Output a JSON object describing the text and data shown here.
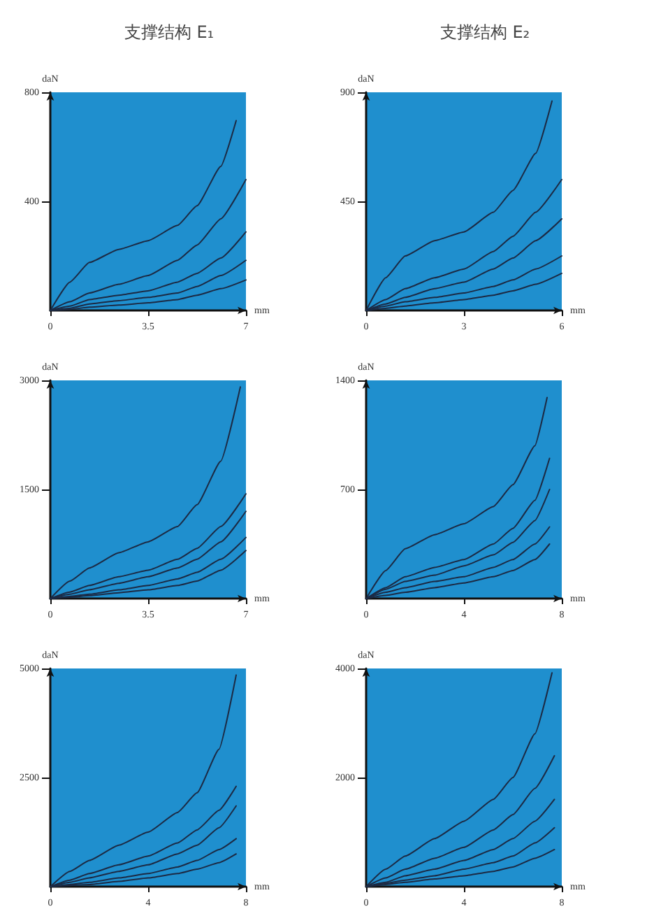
{
  "chart_data": [
    {
      "type": "line",
      "title": "支撑结构 E₁",
      "xlabel": "mm",
      "ylabel": "daN",
      "xlim": [
        0,
        7
      ],
      "xticks": [
        0,
        3.5,
        7
      ],
      "ylim": [
        0,
        800
      ],
      "yticks": [
        400,
        800
      ],
      "grid": false,
      "marker": "none",
      "line_style": "solid",
      "x": [
        0,
        0.7,
        1.4,
        2.45,
        3.5,
        4.55,
        5.25,
        6.1,
        7
      ],
      "series": [
        {
          "color": "#1c2a44",
          "x": [
            0,
            0.7,
            1.4,
            2.45,
            3.5,
            4.55,
            5.25,
            6.1,
            6.65
          ],
          "values": [
            0,
            104,
            176,
            224,
            256,
            312,
            384,
            528,
            696
          ]
        },
        {
          "color": "#1c2a44",
          "values": [
            0,
            32,
            64,
            96,
            128,
            184,
            240,
            336,
            480
          ]
        },
        {
          "color": "#1c2a44",
          "values": [
            0,
            16,
            40,
            56,
            72,
            104,
            136,
            192,
            288
          ]
        },
        {
          "color": "#1c2a44",
          "values": [
            0,
            8,
            24,
            36,
            48,
            64,
            88,
            128,
            184
          ]
        },
        {
          "color": "#1c2a44",
          "values": [
            0,
            4,
            12,
            20,
            28,
            40,
            56,
            80,
            112
          ]
        }
      ]
    },
    {
      "type": "line",
      "title": "支撑结构 E₂",
      "xlabel": "mm",
      "ylabel": "daN",
      "xlim": [
        0,
        6
      ],
      "xticks": [
        0,
        3,
        6
      ],
      "ylim": [
        0,
        900
      ],
      "yticks": [
        450,
        900
      ],
      "grid": false,
      "marker": "none",
      "line_style": "solid",
      "x": [
        0,
        0.6,
        1.2,
        2.1,
        3,
        3.9,
        4.5,
        5.2,
        6
      ],
      "series": [
        {
          "color": "#1c2a44",
          "x": [
            0,
            0.6,
            1.2,
            2.1,
            3,
            3.9,
            4.5,
            5.2,
            5.7
          ],
          "values": [
            0,
            135,
            225,
            288,
            324,
            405,
            495,
            648,
            864
          ]
        },
        {
          "color": "#1c2a44",
          "values": [
            0,
            45,
            90,
            135,
            171,
            243,
            306,
            405,
            540
          ]
        },
        {
          "color": "#1c2a44",
          "values": [
            0,
            27,
            54,
            90,
            117,
            171,
            216,
            288,
            378
          ]
        },
        {
          "color": "#1c2a44",
          "values": [
            0,
            18,
            36,
            54,
            72,
            99,
            126,
            171,
            225
          ]
        },
        {
          "color": "#1c2a44",
          "values": [
            0,
            9,
            18,
            32,
            45,
            63,
            81,
            108,
            153
          ]
        }
      ]
    },
    {
      "type": "line",
      "xlabel": "mm",
      "ylabel": "daN",
      "xlim": [
        0,
        7
      ],
      "xticks": [
        0,
        3.5,
        7
      ],
      "ylim": [
        0,
        3000
      ],
      "yticks": [
        1500,
        3000
      ],
      "grid": false,
      "marker": "none",
      "line_style": "solid",
      "x": [
        0,
        0.7,
        1.4,
        2.45,
        3.5,
        4.55,
        5.25,
        6.1,
        7
      ],
      "series": [
        {
          "color": "#1c2a44",
          "x": [
            0,
            0.7,
            1.4,
            2.45,
            3.5,
            4.55,
            5.25,
            6.1,
            6.8
          ],
          "values": [
            0,
            240,
            420,
            630,
            780,
            990,
            1290,
            1890,
            2910
          ]
        },
        {
          "color": "#1c2a44",
          "values": [
            0,
            90,
            180,
            300,
            390,
            540,
            690,
            990,
            1440
          ]
        },
        {
          "color": "#1c2a44",
          "values": [
            0,
            60,
            120,
            210,
            300,
            420,
            540,
            780,
            1200
          ]
        },
        {
          "color": "#1c2a44",
          "values": [
            0,
            30,
            60,
            120,
            180,
            270,
            360,
            540,
            840
          ]
        },
        {
          "color": "#1c2a44",
          "values": [
            0,
            20,
            40,
            80,
            120,
            180,
            240,
            390,
            660
          ]
        }
      ]
    },
    {
      "type": "line",
      "xlabel": "mm",
      "ylabel": "daN",
      "xlim": [
        0,
        8
      ],
      "xticks": [
        0,
        4,
        8
      ],
      "ylim": [
        0,
        1400
      ],
      "yticks": [
        700,
        1400
      ],
      "grid": false,
      "marker": "none",
      "line_style": "solid",
      "x": [
        0,
        0.8,
        1.6,
        2.8,
        4,
        5.2,
        6,
        6.9,
        7.5
      ],
      "series": [
        {
          "color": "#1c2a44",
          "x": [
            0,
            0.8,
            1.6,
            2.8,
            4,
            5.2,
            6,
            6.9,
            7.4
          ],
          "values": [
            0,
            180,
            320,
            410,
            480,
            590,
            730,
            980,
            1290
          ]
        },
        {
          "color": "#1c2a44",
          "values": [
            0,
            70,
            140,
            200,
            250,
            350,
            450,
            630,
            900
          ]
        },
        {
          "color": "#1c2a44",
          "values": [
            0,
            60,
            110,
            150,
            210,
            280,
            360,
            500,
            700
          ]
        },
        {
          "color": "#1c2a44",
          "values": [
            0,
            40,
            70,
            110,
            140,
            200,
            250,
            350,
            460
          ]
        },
        {
          "color": "#1c2a44",
          "values": [
            0,
            20,
            40,
            70,
            100,
            140,
            180,
            250,
            350
          ]
        }
      ]
    },
    {
      "type": "line",
      "xlabel": "mm",
      "ylabel": "daN",
      "xlim": [
        0,
        8
      ],
      "xticks": [
        0,
        4,
        8
      ],
      "ylim": [
        0,
        5000
      ],
      "yticks": [
        2500,
        5000
      ],
      "grid": false,
      "marker": "none",
      "line_style": "solid",
      "x": [
        0,
        0.8,
        1.6,
        2.8,
        4,
        5.2,
        6,
        6.9,
        7.6
      ],
      "series": [
        {
          "color": "#1c2a44",
          "x": [
            0,
            0.8,
            1.6,
            2.8,
            4,
            5.2,
            6,
            6.9,
            7.6
          ],
          "values": [
            0,
            350,
            600,
            950,
            1250,
            1700,
            2150,
            3150,
            4850
          ]
        },
        {
          "color": "#1c2a44",
          "values": [
            0,
            150,
            300,
            500,
            700,
            1000,
            1300,
            1750,
            2300
          ]
        },
        {
          "color": "#1c2a44",
          "values": [
            0,
            100,
            200,
            350,
            500,
            750,
            950,
            1350,
            1850
          ]
        },
        {
          "color": "#1c2a44",
          "values": [
            0,
            50,
            100,
            200,
            300,
            450,
            600,
            850,
            1100
          ]
        },
        {
          "color": "#1c2a44",
          "values": [
            0,
            30,
            50,
            120,
            200,
            300,
            400,
            550,
            750
          ]
        }
      ]
    },
    {
      "type": "line",
      "xlabel": "mm",
      "ylabel": "daN",
      "xlim": [
        0,
        8
      ],
      "xticks": [
        0,
        4,
        8
      ],
      "ylim": [
        0,
        4000
      ],
      "yticks": [
        2000,
        4000
      ],
      "grid": false,
      "marker": "none",
      "line_style": "solid",
      "x": [
        0,
        0.8,
        1.6,
        2.8,
        4,
        5.2,
        6,
        6.9,
        7.7
      ],
      "series": [
        {
          "color": "#1c2a44",
          "x": [
            0,
            0.8,
            1.6,
            2.8,
            4,
            5.2,
            6,
            6.9,
            7.6
          ],
          "values": [
            0,
            320,
            560,
            880,
            1200,
            1600,
            2000,
            2800,
            3920
          ]
        },
        {
          "color": "#1c2a44",
          "values": [
            0,
            160,
            320,
            520,
            720,
            1040,
            1320,
            1800,
            2400
          ]
        },
        {
          "color": "#1c2a44",
          "values": [
            0,
            80,
            200,
            320,
            480,
            680,
            880,
            1200,
            1600
          ]
        },
        {
          "color": "#1c2a44",
          "values": [
            0,
            60,
            120,
            200,
            320,
            440,
            560,
            800,
            1080
          ]
        },
        {
          "color": "#1c2a44",
          "values": [
            0,
            40,
            80,
            140,
            200,
            280,
            360,
            520,
            680
          ]
        }
      ]
    }
  ]
}
